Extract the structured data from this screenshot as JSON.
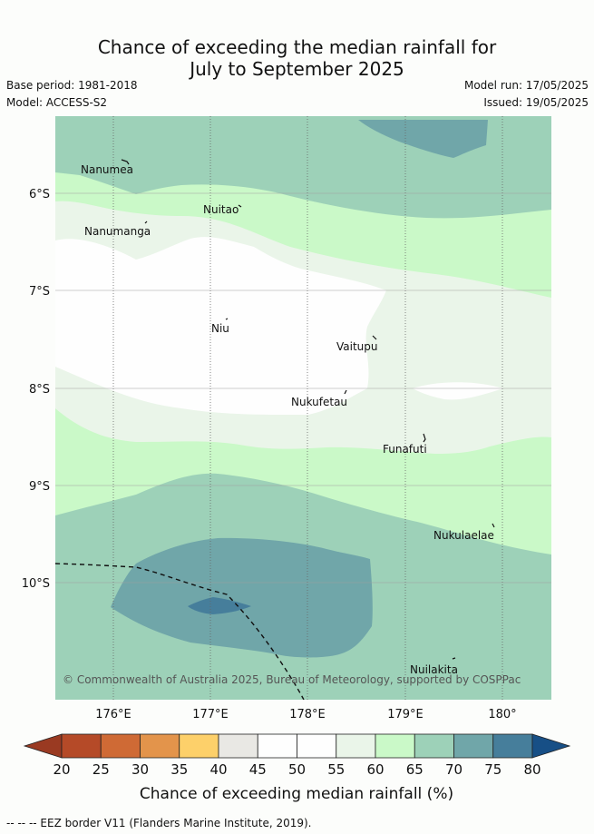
{
  "title_line1": "Chance of exceeding the median rainfall for",
  "title_line2": "July to September 2025",
  "base_period": "Base period: 1981-2018",
  "model": "Model: ACCESS-S2",
  "model_run": "Model run: 17/05/2025",
  "issued": "Issued: 19/05/2025",
  "x_ticks": [
    "176°E",
    "177°E",
    "178°E",
    "179°E",
    "180°"
  ],
  "y_ticks": [
    "6°S",
    "7°S",
    "8°S",
    "9°S",
    "10°S"
  ],
  "places": [
    {
      "name": "Nanumea"
    },
    {
      "name": "Nuitao"
    },
    {
      "name": "Nanumanga"
    },
    {
      "name": "Niu"
    },
    {
      "name": "Vaitupu"
    },
    {
      "name": "Nukufetau"
    },
    {
      "name": "Funafuti"
    },
    {
      "name": "Nukulaelae"
    },
    {
      "name": "Nuilakita"
    }
  ],
  "copyright": "© Commonwealth of Australia 2025, Bureau of Meteorology, supported by COSPPac",
  "colorbar": {
    "ticks": [
      "20",
      "25",
      "30",
      "35",
      "40",
      "45",
      "50",
      "55",
      "60",
      "65",
      "70",
      "75",
      "80"
    ],
    "colors": [
      "#b54a28",
      "#cf6a35",
      "#e3944b",
      "#fdd06a",
      "#e9e8e4",
      "#fefefe",
      "#fefefe",
      "#eaf5e9",
      "#caf9c8",
      "#9dd1b8",
      "#70a6a9",
      "#467e9b"
    ],
    "under_color": "#9a3a22",
    "over_color": "#174f86",
    "label": "Chance of exceeding median rainfall (%)"
  },
  "footer": "--  --  -- EEZ border V11 (Flanders Marine Institute, 2019)."
}
